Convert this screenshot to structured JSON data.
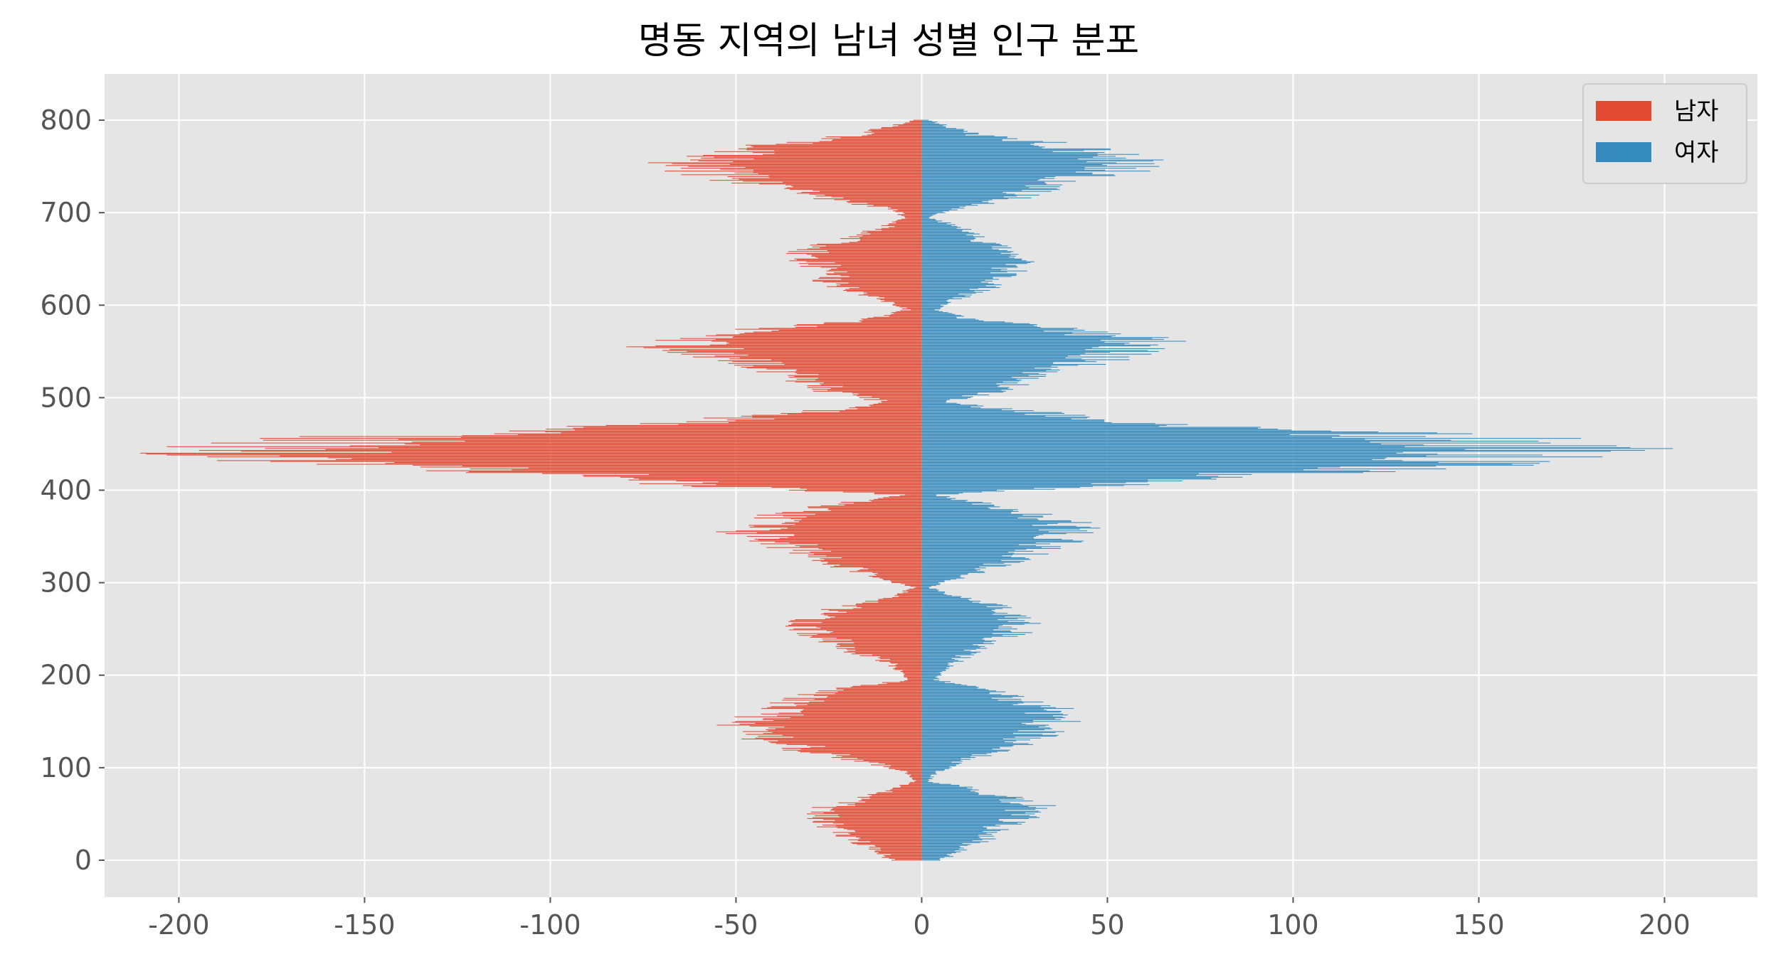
{
  "chart_data": {
    "type": "bar",
    "orientation": "horizontal",
    "subtype": "population-pyramid",
    "title": "명동 지역의 남녀 성별 인구 분포",
    "xlabel": "",
    "ylabel": "",
    "xlim": [
      -220,
      225
    ],
    "ylim": [
      -40,
      850
    ],
    "x_ticks": [
      -200,
      -150,
      -100,
      -50,
      0,
      50,
      100,
      150,
      200
    ],
    "y_ticks": [
      0,
      100,
      200,
      300,
      400,
      500,
      600,
      700,
      800
    ],
    "grid": true,
    "legend_position": "upper right",
    "style": "ggplot",
    "colors": {
      "background": "#e5e5e5",
      "grid": "#ffffff",
      "male": "#e24a33",
      "female": "#348abd"
    },
    "series": [
      {
        "name": "남자",
        "color": "#e24a33",
        "profile": [
          [
            0,
            -8
          ],
          [
            10,
            -12
          ],
          [
            20,
            -18
          ],
          [
            30,
            -22
          ],
          [
            40,
            -26
          ],
          [
            50,
            -30
          ],
          [
            60,
            -24
          ],
          [
            70,
            -14
          ],
          [
            80,
            -6
          ],
          [
            85,
            -2
          ],
          [
            95,
            -4
          ],
          [
            105,
            -14
          ],
          [
            115,
            -28
          ],
          [
            125,
            -38
          ],
          [
            135,
            -46
          ],
          [
            145,
            -48
          ],
          [
            155,
            -45
          ],
          [
            165,
            -40
          ],
          [
            175,
            -32
          ],
          [
            185,
            -24
          ],
          [
            195,
            -4
          ],
          [
            205,
            -6
          ],
          [
            215,
            -10
          ],
          [
            225,
            -18
          ],
          [
            235,
            -24
          ],
          [
            245,
            -30
          ],
          [
            255,
            -34
          ],
          [
            265,
            -30
          ],
          [
            275,
            -20
          ],
          [
            285,
            -8
          ],
          [
            295,
            -2
          ],
          [
            305,
            -12
          ],
          [
            315,
            -20
          ],
          [
            325,
            -26
          ],
          [
            335,
            -34
          ],
          [
            345,
            -40
          ],
          [
            355,
            -50
          ],
          [
            365,
            -44
          ],
          [
            375,
            -38
          ],
          [
            385,
            -24
          ],
          [
            395,
            -6
          ],
          [
            405,
            -60
          ],
          [
            415,
            -90
          ],
          [
            425,
            -140
          ],
          [
            435,
            -175
          ],
          [
            445,
            -190
          ],
          [
            455,
            -165
          ],
          [
            465,
            -100
          ],
          [
            475,
            -60
          ],
          [
            485,
            -30
          ],
          [
            495,
            -10
          ],
          [
            505,
            -24
          ],
          [
            515,
            -30
          ],
          [
            525,
            -38
          ],
          [
            535,
            -46
          ],
          [
            545,
            -56
          ],
          [
            555,
            -68
          ],
          [
            565,
            -62
          ],
          [
            575,
            -42
          ],
          [
            585,
            -14
          ],
          [
            595,
            -4
          ],
          [
            605,
            -10
          ],
          [
            615,
            -18
          ],
          [
            625,
            -26
          ],
          [
            635,
            -26
          ],
          [
            645,
            -30
          ],
          [
            655,
            -34
          ],
          [
            665,
            -26
          ],
          [
            675,
            -18
          ],
          [
            685,
            -10
          ],
          [
            695,
            -4
          ],
          [
            705,
            -10
          ],
          [
            715,
            -28
          ],
          [
            725,
            -36
          ],
          [
            735,
            -50
          ],
          [
            745,
            -62
          ],
          [
            755,
            -66
          ],
          [
            765,
            -52
          ],
          [
            775,
            -40
          ],
          [
            785,
            -18
          ],
          [
            800,
            -2
          ]
        ]
      },
      {
        "name": "여자",
        "color": "#348abd",
        "profile": [
          [
            0,
            6
          ],
          [
            10,
            10
          ],
          [
            20,
            16
          ],
          [
            30,
            20
          ],
          [
            40,
            24
          ],
          [
            50,
            30
          ],
          [
            60,
            32
          ],
          [
            70,
            22
          ],
          [
            80,
            12
          ],
          [
            85,
            2
          ],
          [
            95,
            4
          ],
          [
            105,
            10
          ],
          [
            115,
            18
          ],
          [
            125,
            26
          ],
          [
            135,
            32
          ],
          [
            145,
            36
          ],
          [
            155,
            38
          ],
          [
            165,
            36
          ],
          [
            175,
            26
          ],
          [
            185,
            18
          ],
          [
            195,
            4
          ],
          [
            205,
            6
          ],
          [
            215,
            10
          ],
          [
            225,
            14
          ],
          [
            235,
            18
          ],
          [
            245,
            26
          ],
          [
            255,
            28
          ],
          [
            265,
            26
          ],
          [
            275,
            20
          ],
          [
            285,
            10
          ],
          [
            295,
            2
          ],
          [
            305,
            10
          ],
          [
            315,
            18
          ],
          [
            325,
            26
          ],
          [
            335,
            32
          ],
          [
            345,
            38
          ],
          [
            355,
            44
          ],
          [
            365,
            40
          ],
          [
            375,
            30
          ],
          [
            385,
            18
          ],
          [
            395,
            4
          ],
          [
            405,
            50
          ],
          [
            415,
            85
          ],
          [
            425,
            140
          ],
          [
            435,
            170
          ],
          [
            445,
            180
          ],
          [
            455,
            160
          ],
          [
            465,
            110
          ],
          [
            475,
            55
          ],
          [
            485,
            30
          ],
          [
            495,
            6
          ],
          [
            505,
            18
          ],
          [
            515,
            26
          ],
          [
            525,
            34
          ],
          [
            535,
            42
          ],
          [
            545,
            52
          ],
          [
            555,
            62
          ],
          [
            565,
            60
          ],
          [
            575,
            38
          ],
          [
            585,
            14
          ],
          [
            595,
            4
          ],
          [
            605,
            8
          ],
          [
            615,
            16
          ],
          [
            625,
            22
          ],
          [
            635,
            24
          ],
          [
            645,
            26
          ],
          [
            655,
            26
          ],
          [
            665,
            20
          ],
          [
            675,
            16
          ],
          [
            685,
            10
          ],
          [
            695,
            2
          ],
          [
            705,
            10
          ],
          [
            715,
            26
          ],
          [
            725,
            32
          ],
          [
            735,
            40
          ],
          [
            745,
            55
          ],
          [
            755,
            60
          ],
          [
            765,
            50
          ],
          [
            775,
            36
          ],
          [
            785,
            14
          ],
          [
            800,
            2
          ]
        ]
      }
    ]
  }
}
